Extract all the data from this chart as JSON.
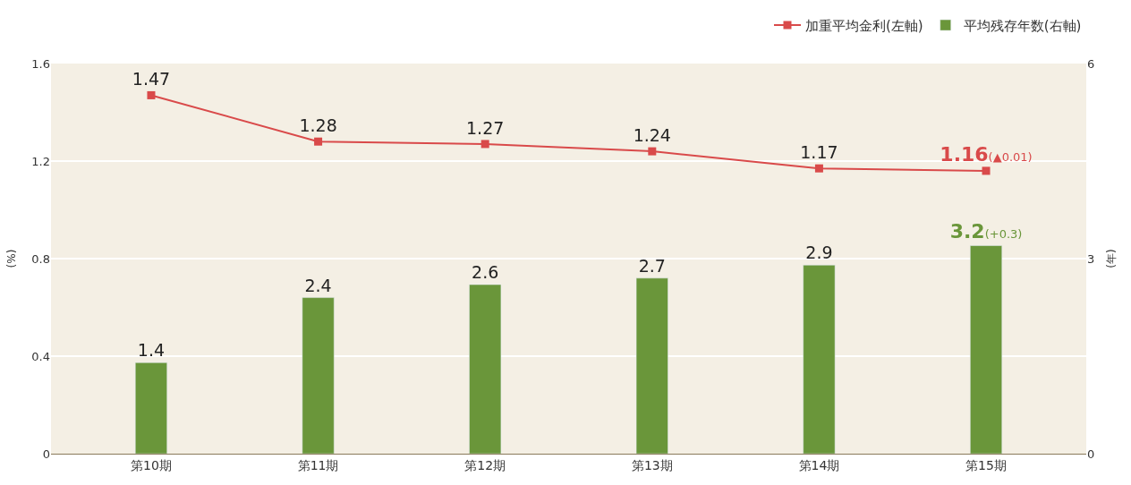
{
  "chart_data": {
    "type": "bar",
    "ylabel": "(%)",
    "y2label": "(年)",
    "categories": [
      "第10期",
      "第11期",
      "第12期",
      "第13期",
      "第14期",
      "第15期"
    ],
    "series": [
      {
        "name": "加重平均金利(左軸)",
        "type": "line",
        "color": "#d94a4a",
        "values": [
          1.47,
          1.28,
          1.27,
          1.24,
          1.17,
          1.16
        ],
        "value_labels": [
          "1.47",
          "1.28",
          "1.27",
          "1.24",
          "1.17",
          "1.16(▲0.01)"
        ]
      },
      {
        "name": "平均残存年数(右軸)",
        "axis": "y2",
        "color": "#6a963a",
        "values": [
          1.4,
          2.4,
          2.6,
          2.7,
          2.9,
          3.2
        ],
        "value_labels": [
          "1.4",
          "2.4",
          "2.6",
          "2.7",
          "2.9",
          "3.2(+0.3)"
        ]
      }
    ],
    "ylim": [
      0,
      1.6
    ],
    "yticks": [
      0,
      0.4,
      0.8,
      1.2,
      1.6
    ],
    "y2lim": [
      0,
      6
    ],
    "y2ticks": [
      0,
      3,
      6
    ],
    "marker": "square",
    "grid": "y",
    "legend": "top right"
  }
}
